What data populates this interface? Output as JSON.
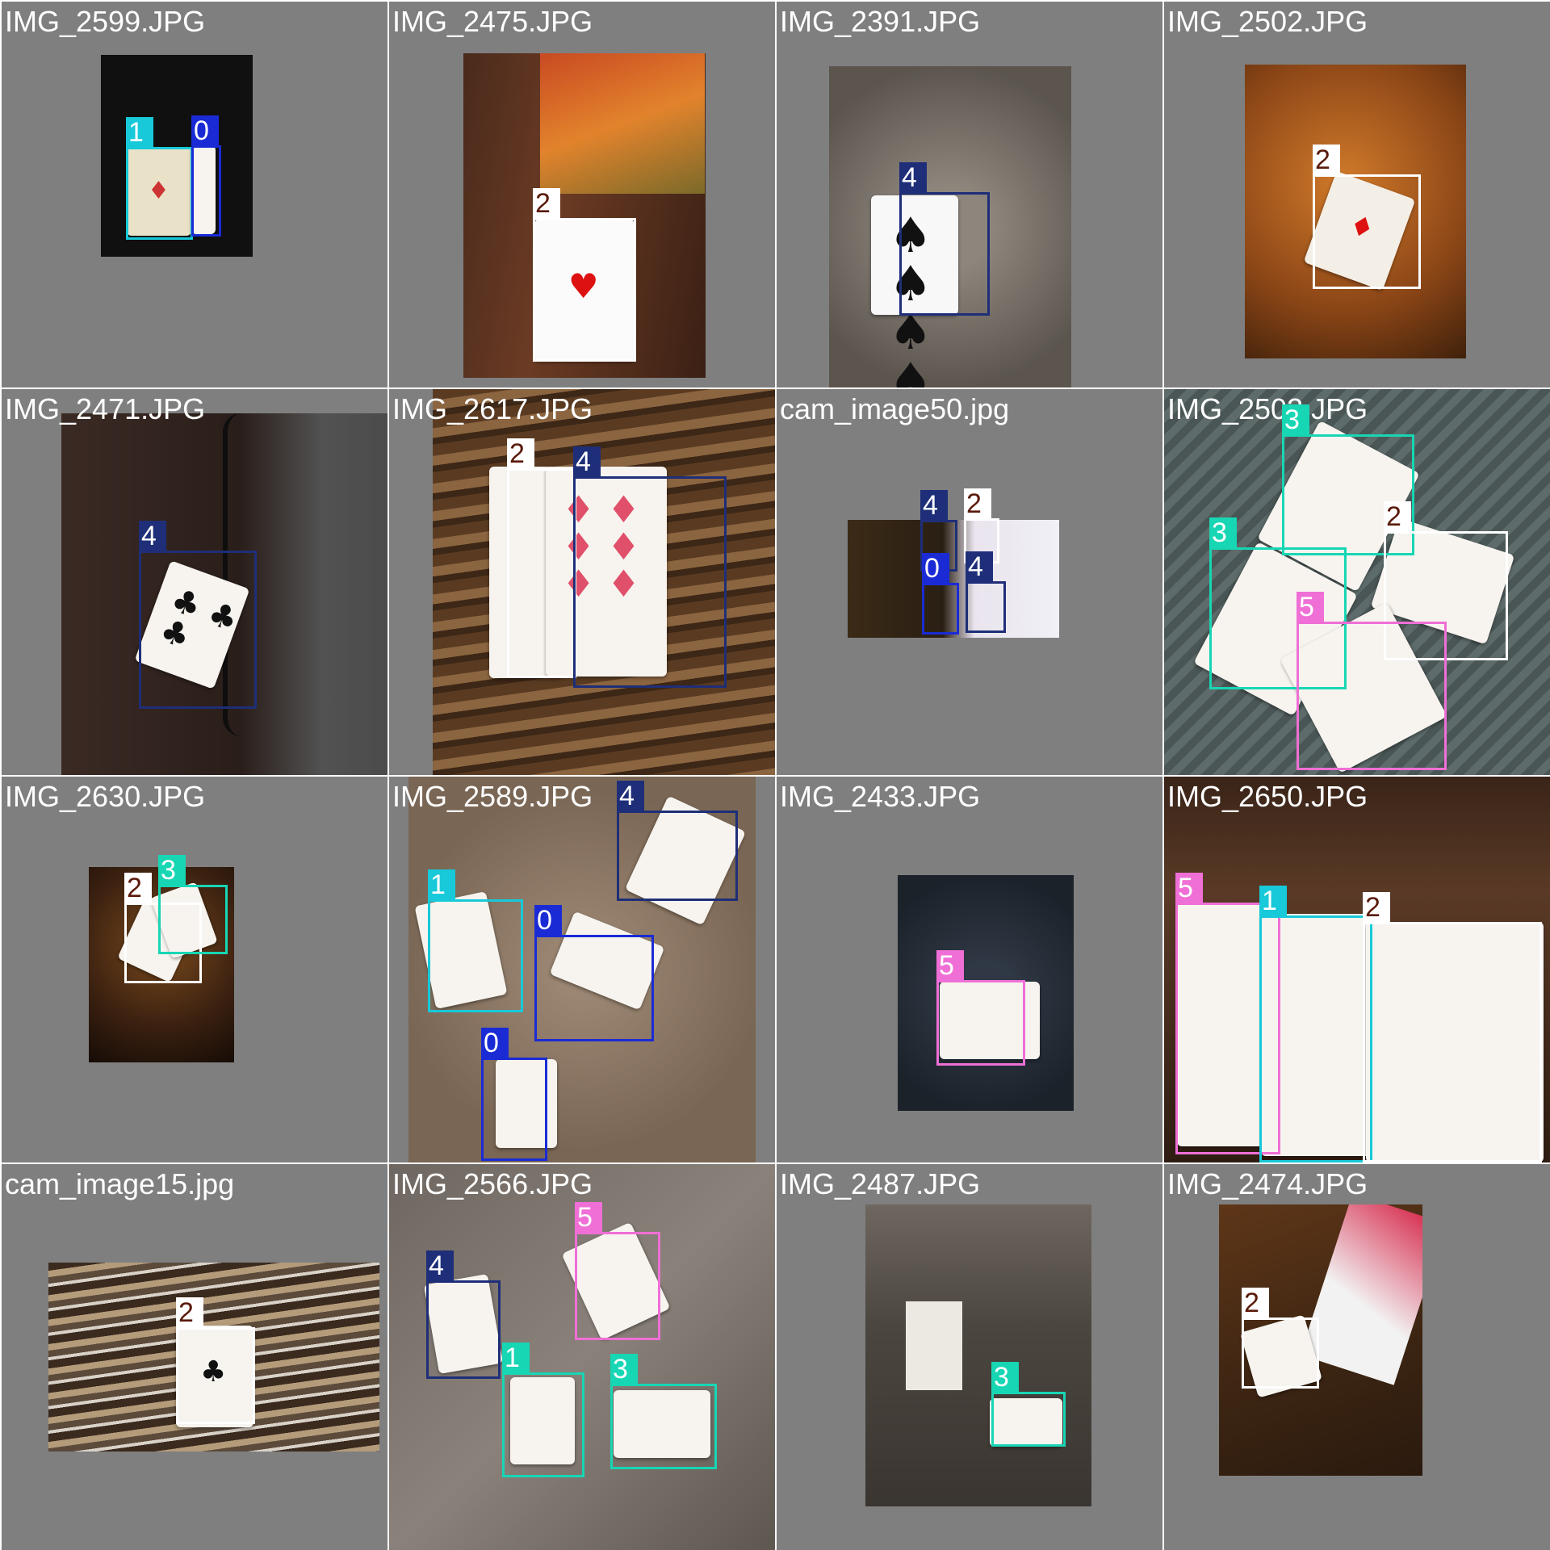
{
  "colors": {
    "class_0": "#1a2bd6",
    "class_1": "#17c9d9",
    "class_2": "#ffffff",
    "class_2_label_bg": "#ffffff",
    "class_3": "#17d6b4",
    "class_4": "#1e2e78",
    "class_5": "#ef6fd6",
    "tile_bg": "#7f7f7f"
  },
  "tiles": [
    {
      "filename": "IMG_2599.JPG",
      "labels": [
        "1",
        "0"
      ]
    },
    {
      "filename": "IMG_2475.JPG",
      "labels": [
        "2"
      ]
    },
    {
      "filename": "IMG_2391.JPG",
      "labels": [
        "4"
      ]
    },
    {
      "filename": "IMG_2502.JPG",
      "labels": [
        "2"
      ]
    },
    {
      "filename": "IMG_2471.JPG",
      "labels": [
        "4"
      ]
    },
    {
      "filename": "IMG_2617.JPG",
      "labels": [
        "2",
        "4"
      ]
    },
    {
      "filename": "cam_image50.jpg",
      "labels": [
        "4",
        "2",
        "0",
        "4"
      ]
    },
    {
      "filename": "IMG_2503.JPG",
      "labels": [
        "3",
        "2",
        "3",
        "5"
      ]
    },
    {
      "filename": "IMG_2630.JPG",
      "labels": [
        "2",
        "3"
      ]
    },
    {
      "filename": "IMG_2589.JPG",
      "labels": [
        "4",
        "1",
        "0",
        "0"
      ]
    },
    {
      "filename": "IMG_2433.JPG",
      "labels": [
        "5"
      ]
    },
    {
      "filename": "IMG_2650.JPG",
      "labels": [
        "5",
        "1",
        "2"
      ]
    },
    {
      "filename": "cam_image15.jpg",
      "labels": [
        "2"
      ]
    },
    {
      "filename": "IMG_2566.JPG",
      "labels": [
        "5",
        "4",
        "1",
        "3"
      ]
    },
    {
      "filename": "IMG_2487.JPG",
      "labels": [
        "3"
      ]
    },
    {
      "filename": "IMG_2474.JPG",
      "labels": [
        "2"
      ]
    }
  ]
}
